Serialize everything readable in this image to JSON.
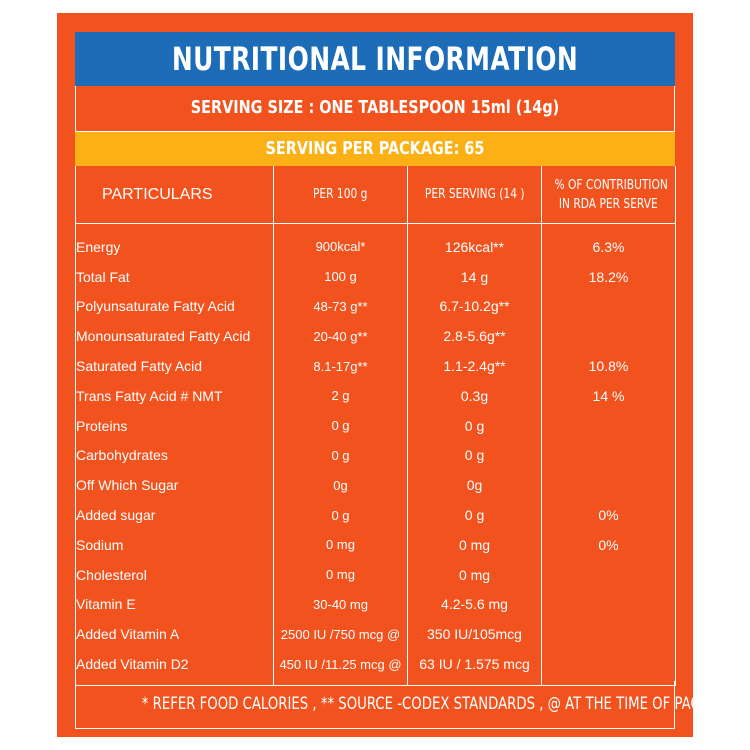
{
  "title": "NUTRITIONAL INFORMATION",
  "serving_size": "SERVING SIZE  : ONE TABLESPOON 15ml (14g)",
  "serving_per_package": "SERVING PER PACKAGE: 65",
  "headers": {
    "particulars": "PARTICULARS",
    "per_100g": "PER 100 g",
    "per_serving": "PER SERVING (14 )",
    "rda_line1": "% OF CONTRIBUTION",
    "rda_line2": "IN RDA PER SERVE"
  },
  "rows": [
    {
      "name": "Energy",
      "per_100g": "900kcal*",
      "per_serving": "126kcal**",
      "rda": "6.3%"
    },
    {
      "name": "Total Fat",
      "per_100g": "100 g",
      "per_serving": "14 g",
      "rda": "18.2%"
    },
    {
      "name": "Polyunsaturate Fatty Acid",
      "per_100g": "48-73 g**",
      "per_serving": "6.7-10.2g**",
      "rda": ""
    },
    {
      "name": "Monounsaturated Fatty Acid",
      "per_100g": "20-40 g**",
      "per_serving": "2.8-5.6g**",
      "rda": ""
    },
    {
      "name": "Saturated Fatty Acid",
      "per_100g": "8.1-17g**",
      "per_serving": "1.1-2.4g**",
      "rda": "10.8%"
    },
    {
      "name": "Trans Fatty Acid # NMT",
      "per_100g": "2 g",
      "per_serving": "0.3g",
      "rda": "14 %"
    },
    {
      "name": "Proteins",
      "per_100g": "0 g",
      "per_serving": "0 g",
      "rda": ""
    },
    {
      "name": "Carbohydrates",
      "per_100g": "0 g",
      "per_serving": "0 g",
      "rda": ""
    },
    {
      "name": "Off Which Sugar",
      "per_100g": "0g",
      "per_serving": "0g",
      "rda": ""
    },
    {
      "name": "Added sugar",
      "per_100g": "0 g",
      "per_serving": "0 g",
      "rda": "0%"
    },
    {
      "name": "Sodium",
      "per_100g": "0 mg",
      "per_serving": "0 mg",
      "rda": "0%"
    },
    {
      "name": "Cholesterol",
      "per_100g": "0 mg",
      "per_serving": "0 mg",
      "rda": ""
    },
    {
      "name": "Vitamin E",
      "per_100g": "30-40 mg",
      "per_serving": "4.2-5.6 mg",
      "rda": ""
    },
    {
      "name": "Added Vitamin A",
      "per_100g": "2500 IU /750 mcg @",
      "per_serving": "350 IU/105mcg",
      "rda": ""
    },
    {
      "name": "Added Vitamin D2",
      "per_100g": "450 IU /11.25 mcg @",
      "per_serving": "63 IU / 1.575 mcg",
      "rda": ""
    }
  ],
  "footnote": "* REFER FOOD CALORIES , ** SOURCE -CODEX STANDARDS , @ AT THE TIME OF PACKING",
  "colors": {
    "panel": "#f2521e",
    "title_bar": "#1c6cb8",
    "package_bar": "#fbb116",
    "text": "#ffffff"
  }
}
